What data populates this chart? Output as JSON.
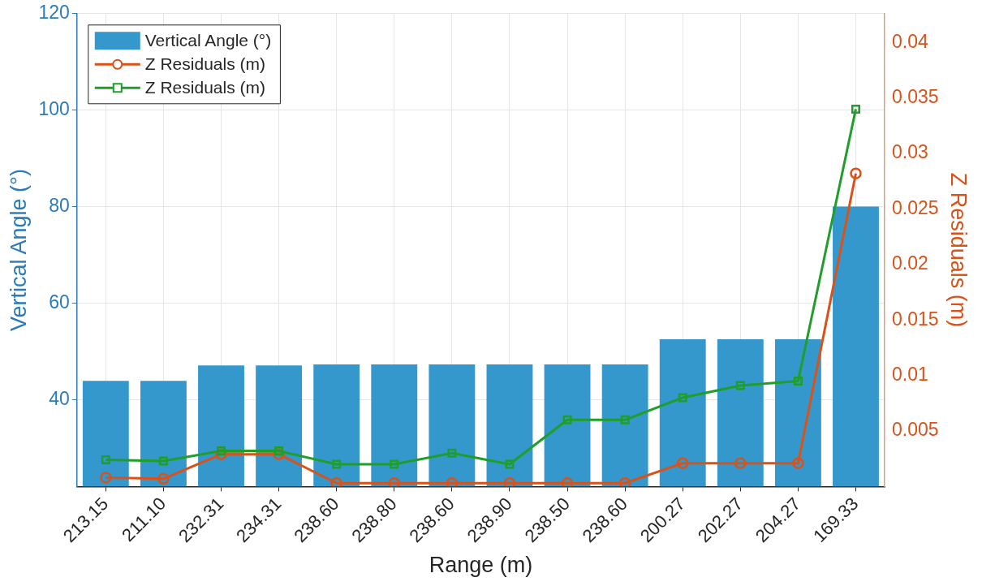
{
  "chart_data": {
    "type": "bar",
    "xlabel": "Range (m)",
    "ylabel": "Vertical Angle (°)",
    "y2label": "Z Residuals (m)",
    "categories": [
      "213.15",
      "211.10",
      "232.31",
      "234.31",
      "238.60",
      "238.80",
      "238.60",
      "238.90",
      "238.50",
      "238.60",
      "200.27",
      "202.27",
      "204.27",
      "169.33"
    ],
    "series": [
      {
        "name": "Vertical Angle (°)",
        "color": "#3498cd",
        "values": [
          43.9,
          43.9,
          47.1,
          47.1,
          47.3,
          47.3,
          47.3,
          47.3,
          47.3,
          47.3,
          52.5,
          52.5,
          52.5,
          80
        ]
      },
      {
        "name": "Z Residuals (m)",
        "type": "line",
        "axis": "y2",
        "marker": "circle",
        "color": "#d95319",
        "values": [
          0.0008,
          0.0007,
          0.0029,
          0.0029,
          0.0003,
          0.0003,
          0.0003,
          0.0003,
          0.0003,
          0.0003,
          0.0021,
          0.0021,
          0.0021,
          0.0282
        ]
      },
      {
        "name": "Z Residuals (m)",
        "type": "line",
        "axis": "y2",
        "marker": "square",
        "color": "#1f9e2a",
        "values": [
          0.0024,
          0.0023,
          0.0032,
          0.0032,
          0.002,
          0.002,
          0.003,
          0.002,
          0.006,
          0.006,
          0.008,
          0.0091,
          0.0095,
          0.034
        ]
      }
    ],
    "ylim": [
      22,
      120
    ],
    "yticks": [
      40,
      60,
      80,
      100,
      120
    ],
    "y2lim": [
      0,
      0.0426
    ],
    "y2ticks": [
      0.005,
      0.01,
      0.015,
      0.02,
      0.025,
      0.03,
      0.035,
      0.04
    ],
    "grid": true,
    "legend": "top left"
  }
}
